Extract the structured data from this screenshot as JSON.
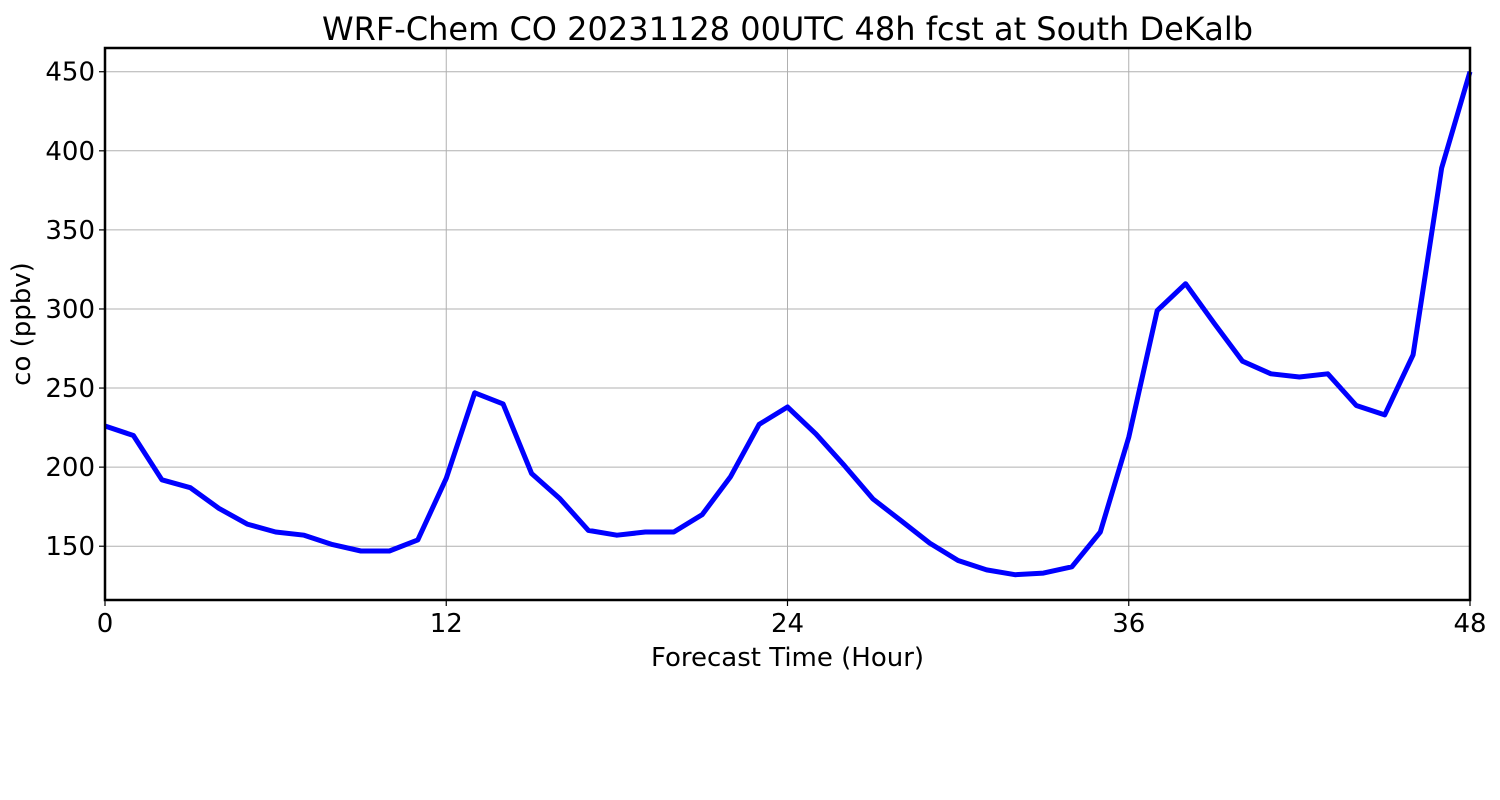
{
  "chart_data": {
    "type": "line",
    "title": "WRF-Chem CO  20231128 00UTC 48h fcst at South DeKalb",
    "xlabel": "Forecast Time (Hour)",
    "ylabel": "co  (ppbv)",
    "xlim": [
      0,
      48
    ],
    "ylim": [
      116,
      465
    ],
    "xticks": [
      0,
      12,
      24,
      36,
      48
    ],
    "yticks": [
      150,
      200,
      250,
      300,
      350,
      400,
      450
    ],
    "grid": true,
    "series": [
      {
        "color": "#0000ff",
        "x": [
          0,
          1,
          2,
          3,
          4,
          5,
          6,
          7,
          8,
          9,
          10,
          11,
          12,
          13,
          14,
          15,
          16,
          17,
          18,
          19,
          20,
          21,
          22,
          23,
          24,
          25,
          26,
          27,
          28,
          29,
          30,
          31,
          32,
          33,
          34,
          35,
          36,
          37,
          38,
          39,
          40,
          41,
          42,
          43,
          44,
          45,
          46,
          47,
          48
        ],
        "values": [
          226,
          220,
          192,
          187,
          174,
          164,
          159,
          157,
          151,
          147,
          147,
          154,
          193,
          247,
          240,
          196,
          180,
          160,
          157,
          159,
          159,
          170,
          194,
          227,
          238,
          221,
          201,
          180,
          166,
          152,
          141,
          135,
          132,
          133,
          137,
          159,
          219,
          299,
          316,
          291,
          267,
          259,
          257,
          259,
          239,
          233,
          271,
          389,
          450
        ]
      }
    ]
  }
}
